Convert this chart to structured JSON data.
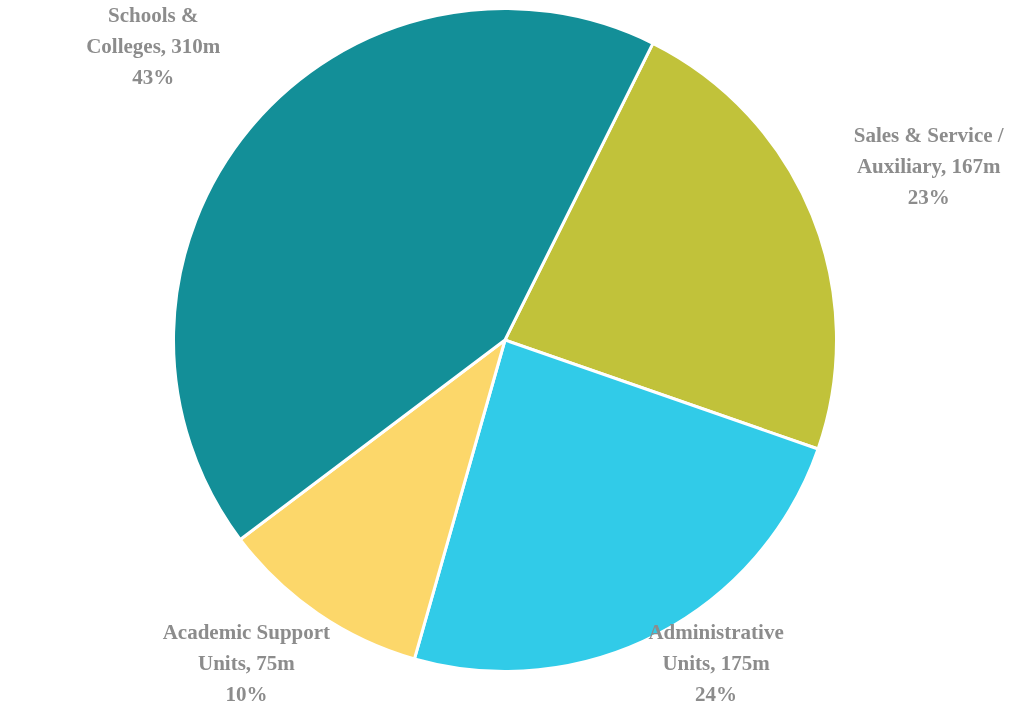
{
  "chart_data": {
    "type": "pie",
    "categories": [
      "Sales & Service / Auxiliary",
      "Administrative Units",
      "Academic Support Units",
      "Schools & Colleges"
    ],
    "values": [
      167,
      175,
      75,
      310
    ],
    "colors": [
      "#c1c23a",
      "#31cbe8",
      "#fcd76a",
      "#138f98"
    ],
    "value_labels": [
      "167m",
      "175m",
      "75m",
      "310m"
    ],
    "annotations": [
      "23%",
      "24%",
      "10%",
      "43%"
    ],
    "legend": false
  }
}
